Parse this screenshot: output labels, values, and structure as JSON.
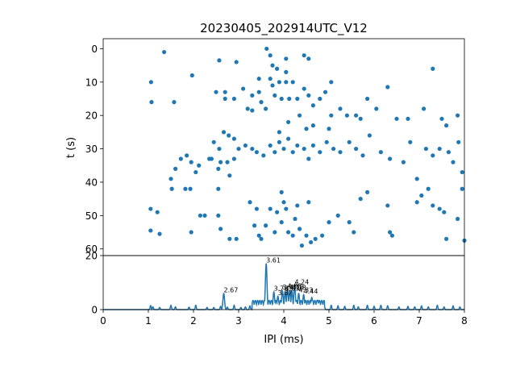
{
  "chart_data": [
    {
      "type": "scatter",
      "title": "20230405_202914UTC_V12",
      "xlabel": "",
      "ylabel": "t (s)",
      "xlim": [
        0,
        8
      ],
      "ylim": [
        62,
        -3
      ],
      "y_inverted": true,
      "yticks": [
        0,
        10,
        20,
        30,
        40,
        50,
        60
      ],
      "marker_color": "#1f77b4",
      "points": [
        [
          1.35,
          1
        ],
        [
          1.06,
          10
        ],
        [
          1.07,
          16
        ],
        [
          1.57,
          16
        ],
        [
          1.97,
          8
        ],
        [
          2.57,
          3.5
        ],
        [
          2.95,
          4
        ],
        [
          3.1,
          12
        ],
        [
          2.5,
          13
        ],
        [
          2.7,
          13
        ],
        [
          2.7,
          15
        ],
        [
          2.9,
          15
        ],
        [
          3.2,
          18
        ],
        [
          3.3,
          14
        ],
        [
          3.3,
          18.5
        ],
        [
          3.45,
          9
        ],
        [
          3.45,
          13
        ],
        [
          3.5,
          16
        ],
        [
          3.6,
          18
        ],
        [
          3.62,
          0
        ],
        [
          3.7,
          2
        ],
        [
          3.75,
          5
        ],
        [
          3.7,
          9
        ],
        [
          3.75,
          11
        ],
        [
          3.8,
          14
        ],
        [
          3.85,
          6
        ],
        [
          3.9,
          10
        ],
        [
          3.95,
          15
        ],
        [
          4.05,
          3
        ],
        [
          4.05,
          7
        ],
        [
          4.05,
          10
        ],
        [
          4.12,
          15
        ],
        [
          4.2,
          10
        ],
        [
          4.3,
          15
        ],
        [
          4.35,
          20
        ],
        [
          4.45,
          2
        ],
        [
          4.55,
          3
        ],
        [
          4.45,
          12
        ],
        [
          4.55,
          14
        ],
        [
          4.65,
          17
        ],
        [
          4.8,
          15
        ],
        [
          4.92,
          13
        ],
        [
          5.05,
          10
        ],
        [
          5.05,
          20
        ],
        [
          5.25,
          18
        ],
        [
          5.4,
          20
        ],
        [
          5.6,
          20
        ],
        [
          5.7,
          21
        ],
        [
          5.85,
          15
        ],
        [
          6.05,
          18
        ],
        [
          6.3,
          11.5
        ],
        [
          6.5,
          21
        ],
        [
          6.75,
          21
        ],
        [
          7.1,
          18
        ],
        [
          7.3,
          6
        ],
        [
          7.5,
          21
        ],
        [
          7.6,
          23
        ],
        [
          7.85,
          20
        ],
        [
          3.9,
          25
        ],
        [
          4.1,
          22
        ],
        [
          4.5,
          24
        ],
        [
          4.65,
          23
        ],
        [
          5.0,
          24
        ],
        [
          1.5,
          39
        ],
        [
          1.6,
          36
        ],
        [
          1.72,
          33
        ],
        [
          1.85,
          32
        ],
        [
          1.95,
          34
        ],
        [
          2.05,
          37
        ],
        [
          1.93,
          42
        ],
        [
          1.82,
          42
        ],
        [
          2.12,
          35
        ],
        [
          2.35,
          33
        ],
        [
          2.45,
          28
        ],
        [
          2.57,
          30
        ],
        [
          2.67,
          25
        ],
        [
          2.6,
          34
        ],
        [
          2.75,
          34
        ],
        [
          2.8,
          38
        ],
        [
          2.9,
          33
        ],
        [
          3.0,
          30
        ],
        [
          3.15,
          29
        ],
        [
          3.3,
          30
        ],
        [
          3.4,
          31
        ],
        [
          3.55,
          32
        ],
        [
          3.7,
          29
        ],
        [
          3.8,
          31
        ],
        [
          3.9,
          28
        ],
        [
          4.0,
          30
        ],
        [
          4.1,
          27
        ],
        [
          4.2,
          31
        ],
        [
          4.3,
          29
        ],
        [
          4.45,
          30
        ],
        [
          4.55,
          33
        ],
        [
          4.65,
          29
        ],
        [
          4.8,
          31
        ],
        [
          4.95,
          28
        ],
        [
          5.1,
          30
        ],
        [
          5.25,
          31
        ],
        [
          5.45,
          28
        ],
        [
          5.6,
          30
        ],
        [
          5.75,
          32
        ],
        [
          5.9,
          26
        ],
        [
          6.15,
          31
        ],
        [
          6.35,
          33
        ],
        [
          6.65,
          34
        ],
        [
          6.8,
          28
        ],
        [
          6.95,
          39
        ],
        [
          7.15,
          30
        ],
        [
          7.3,
          32
        ],
        [
          7.45,
          30
        ],
        [
          7.65,
          31
        ],
        [
          7.75,
          34
        ],
        [
          7.87,
          28
        ],
        [
          7.95,
          37
        ],
        [
          2.78,
          26
        ],
        [
          2.9,
          27
        ],
        [
          2.4,
          33
        ],
        [
          2.55,
          36
        ],
        [
          1.05,
          48
        ],
        [
          1.05,
          54.5
        ],
        [
          1.2,
          49
        ],
        [
          1.25,
          55.5
        ],
        [
          1.52,
          42
        ],
        [
          1.95,
          55
        ],
        [
          2.15,
          50
        ],
        [
          2.25,
          50
        ],
        [
          2.55,
          42
        ],
        [
          2.55,
          50
        ],
        [
          2.6,
          54
        ],
        [
          2.8,
          57
        ],
        [
          2.95,
          57
        ],
        [
          3.25,
          46
        ],
        [
          3.4,
          48
        ],
        [
          3.35,
          53
        ],
        [
          3.45,
          56
        ],
        [
          3.5,
          57
        ],
        [
          3.7,
          48
        ],
        [
          3.85,
          49
        ],
        [
          3.95,
          43
        ],
        [
          3.95,
          52
        ],
        [
          4.05,
          48
        ],
        [
          4.1,
          55
        ],
        [
          4.2,
          56
        ],
        [
          4.25,
          51
        ],
        [
          4.3,
          47
        ],
        [
          4.35,
          54
        ],
        [
          4.4,
          59
        ],
        [
          4.5,
          56
        ],
        [
          4.6,
          58
        ],
        [
          4.7,
          57
        ],
        [
          4.85,
          56
        ],
        [
          5.0,
          52
        ],
        [
          5.2,
          50
        ],
        [
          5.45,
          52
        ],
        [
          5.55,
          55
        ],
        [
          5.7,
          45
        ],
        [
          5.85,
          43
        ],
        [
          6.3,
          47
        ],
        [
          6.35,
          55
        ],
        [
          6.4,
          56
        ],
        [
          6.95,
          46
        ],
        [
          7.05,
          44
        ],
        [
          7.2,
          42
        ],
        [
          7.3,
          47
        ],
        [
          7.45,
          48
        ],
        [
          7.55,
          49
        ],
        [
          7.6,
          57
        ],
        [
          7.85,
          51
        ],
        [
          7.95,
          42
        ],
        [
          8.0,
          57.5
        ],
        [
          3.6,
          53
        ],
        [
          3.8,
          55
        ],
        [
          4.0,
          46
        ],
        [
          4.55,
          46
        ]
      ]
    },
    {
      "type": "line",
      "title": "",
      "xlabel": "IPI (ms)",
      "ylabel": "",
      "xlim": [
        0,
        8
      ],
      "ylim": [
        0,
        20
      ],
      "xticks": [
        0,
        1,
        2,
        3,
        4,
        5,
        6,
        7,
        8
      ],
      "yticks": [
        0,
        20
      ],
      "line_color": "#1f77b4",
      "background_bumps": [
        [
          1.05,
          1.5
        ],
        [
          1.1,
          1.0
        ],
        [
          1.25,
          0.8
        ],
        [
          1.5,
          1.6
        ],
        [
          1.6,
          1.0
        ],
        [
          1.9,
          0.9
        ],
        [
          2.05,
          1.6
        ],
        [
          2.3,
          0.8
        ],
        [
          2.45,
          0.8
        ],
        [
          2.6,
          1.2
        ],
        [
          2.75,
          0.9
        ],
        [
          2.9,
          1.6
        ],
        [
          3.05,
          0.8
        ],
        [
          3.15,
          1.0
        ],
        [
          3.25,
          1.4
        ],
        [
          3.4,
          1.8
        ],
        [
          3.55,
          1.2
        ],
        [
          4.9,
          1.0
        ],
        [
          5.05,
          1.6
        ],
        [
          5.2,
          1.4
        ],
        [
          5.35,
          1.2
        ],
        [
          5.55,
          1.6
        ],
        [
          5.65,
          1.0
        ],
        [
          5.85,
          1.6
        ],
        [
          6.0,
          1.2
        ],
        [
          6.15,
          1.6
        ],
        [
          6.3,
          1.4
        ],
        [
          6.55,
          1.0
        ],
        [
          6.75,
          1.2
        ],
        [
          6.9,
          1.0
        ],
        [
          7.05,
          1.4
        ],
        [
          7.2,
          1.0
        ],
        [
          7.4,
          1.6
        ],
        [
          7.55,
          1.0
        ],
        [
          7.75,
          1.4
        ],
        [
          7.9,
          1.0
        ]
      ],
      "peaks": [
        {
          "x": 2.67,
          "y": 6,
          "label": "2.67"
        },
        {
          "x": 3.61,
          "y": 17,
          "label": "3.61"
        },
        {
          "x": 3.78,
          "y": 6.5,
          "label": "3.78"
        },
        {
          "x": 3.87,
          "y": 5.0,
          "label": "3.87"
        },
        {
          "x": 3.97,
          "y": 7.0,
          "label": "3.97"
        },
        {
          "x": 4.03,
          "y": 6.5,
          "label": "4.03"
        },
        {
          "x": 4.08,
          "y": 7.5,
          "label": "4.08"
        },
        {
          "x": 4.13,
          "y": 7.0,
          "label": "4.13"
        },
        {
          "x": 4.18,
          "y": 6.8,
          "label": "4.18"
        },
        {
          "x": 4.24,
          "y": 9.0,
          "label": "4.24"
        },
        {
          "x": 4.33,
          "y": 6.0,
          "label": "4.33"
        },
        {
          "x": 4.44,
          "y": 5.5,
          "label": "4.44"
        },
        {
          "x": 4.62,
          "y": 4.5,
          "label": ""
        },
        {
          "x": 4.75,
          "y": 3.5,
          "label": ""
        }
      ]
    }
  ]
}
